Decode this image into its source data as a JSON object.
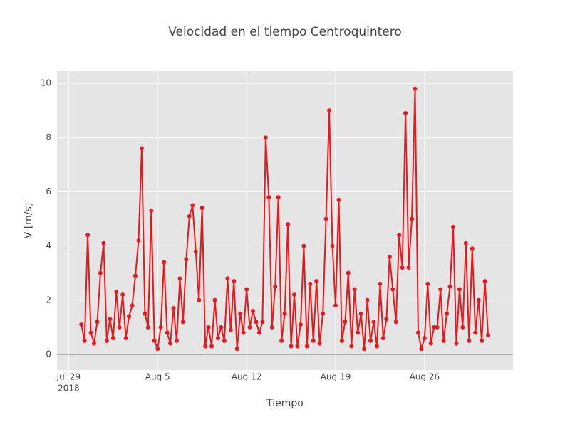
{
  "chart_data": {
    "type": "line",
    "title": "Velocidad en el tiempo Centroquintero",
    "x_label": "Tiempo",
    "y_label": "V [m/s]",
    "color": "#e41a1c",
    "grid": true,
    "xlim": [
      "2018-07-28 02:00",
      "2018-09-01 23:00"
    ],
    "xticks": [
      {
        "value": "2018-07-29",
        "label": "Jul 29"
      },
      {
        "value": "2018-08-05",
        "label": "Aug 5"
      },
      {
        "value": "2018-08-12",
        "label": "Aug 12"
      },
      {
        "value": "2018-08-19",
        "label": "Aug 19"
      },
      {
        "value": "2018-08-26",
        "label": "Aug 26"
      }
    ],
    "x_year": "2018",
    "ylim": [
      -0.58,
      10.45
    ],
    "yticks": [
      0,
      2,
      4,
      6,
      8,
      10
    ],
    "x": [
      "2018-07-30 00:00",
      "2018-07-30 06:00",
      "2018-07-30 12:00",
      "2018-07-30 18:00",
      "2018-07-31 00:00",
      "2018-07-31 06:00",
      "2018-07-31 12:00",
      "2018-07-31 18:00",
      "2018-08-01 00:00",
      "2018-08-01 06:00",
      "2018-08-01 12:00",
      "2018-08-01 18:00",
      "2018-08-02 00:00",
      "2018-08-02 06:00",
      "2018-08-02 12:00",
      "2018-08-02 18:00",
      "2018-08-03 00:00",
      "2018-08-03 06:00",
      "2018-08-03 12:00",
      "2018-08-03 18:00",
      "2018-08-04 00:00",
      "2018-08-04 06:00",
      "2018-08-04 12:00",
      "2018-08-04 18:00",
      "2018-08-05 00:00",
      "2018-08-05 06:00",
      "2018-08-05 12:00",
      "2018-08-05 18:00",
      "2018-08-06 00:00",
      "2018-08-06 06:00",
      "2018-08-06 12:00",
      "2018-08-06 18:00",
      "2018-08-07 00:00",
      "2018-08-07 06:00",
      "2018-08-07 12:00",
      "2018-08-07 18:00",
      "2018-08-08 00:00",
      "2018-08-08 06:00",
      "2018-08-08 12:00",
      "2018-08-08 18:00",
      "2018-08-09 00:00",
      "2018-08-09 06:00",
      "2018-08-09 12:00",
      "2018-08-09 18:00",
      "2018-08-10 00:00",
      "2018-08-10 06:00",
      "2018-08-10 12:00",
      "2018-08-10 18:00",
      "2018-08-11 00:00",
      "2018-08-11 06:00",
      "2018-08-11 12:00",
      "2018-08-11 18:00",
      "2018-08-12 00:00",
      "2018-08-12 06:00",
      "2018-08-12 12:00",
      "2018-08-12 18:00",
      "2018-08-13 00:00",
      "2018-08-13 06:00",
      "2018-08-13 12:00",
      "2018-08-13 18:00",
      "2018-08-14 00:00",
      "2018-08-14 06:00",
      "2018-08-14 12:00",
      "2018-08-14 18:00",
      "2018-08-15 00:00",
      "2018-08-15 06:00",
      "2018-08-15 12:00",
      "2018-08-15 18:00",
      "2018-08-16 00:00",
      "2018-08-16 06:00",
      "2018-08-16 12:00",
      "2018-08-16 18:00",
      "2018-08-17 00:00",
      "2018-08-17 06:00",
      "2018-08-17 12:00",
      "2018-08-17 18:00",
      "2018-08-18 00:00",
      "2018-08-18 06:00",
      "2018-08-18 12:00",
      "2018-08-18 18:00",
      "2018-08-19 00:00",
      "2018-08-19 06:00",
      "2018-08-19 12:00",
      "2018-08-19 18:00",
      "2018-08-20 00:00",
      "2018-08-20 06:00",
      "2018-08-20 12:00",
      "2018-08-20 18:00",
      "2018-08-21 00:00",
      "2018-08-21 06:00",
      "2018-08-21 12:00",
      "2018-08-21 18:00",
      "2018-08-22 00:00",
      "2018-08-22 06:00",
      "2018-08-22 12:00",
      "2018-08-22 18:00",
      "2018-08-23 00:00",
      "2018-08-23 06:00",
      "2018-08-23 12:00",
      "2018-08-23 18:00",
      "2018-08-24 00:00",
      "2018-08-24 06:00",
      "2018-08-24 12:00",
      "2018-08-24 18:00",
      "2018-08-25 00:00",
      "2018-08-25 06:00",
      "2018-08-25 12:00",
      "2018-08-25 18:00",
      "2018-08-26 00:00",
      "2018-08-26 06:00",
      "2018-08-26 12:00",
      "2018-08-26 18:00",
      "2018-08-27 00:00",
      "2018-08-27 06:00",
      "2018-08-27 12:00",
      "2018-08-27 18:00",
      "2018-08-28 00:00",
      "2018-08-28 06:00",
      "2018-08-28 12:00",
      "2018-08-28 18:00",
      "2018-08-29 00:00",
      "2018-08-29 06:00",
      "2018-08-29 12:00",
      "2018-08-29 18:00",
      "2018-08-30 00:00",
      "2018-08-30 06:00",
      "2018-08-30 12:00",
      "2018-08-30 18:00",
      "2018-08-31 00:00"
    ],
    "values": [
      1.1,
      0.5,
      4.4,
      0.8,
      0.4,
      1.2,
      3.0,
      4.1,
      0.5,
      1.3,
      0.6,
      2.3,
      1.0,
      2.2,
      0.6,
      1.4,
      1.8,
      2.9,
      4.2,
      7.6,
      1.5,
      1.0,
      5.3,
      0.5,
      0.2,
      1.0,
      3.4,
      0.8,
      0.4,
      1.7,
      0.5,
      2.8,
      1.2,
      3.5,
      5.1,
      5.5,
      3.8,
      2.0,
      5.4,
      0.3,
      1.0,
      0.3,
      2.0,
      0.6,
      1.0,
      0.5,
      2.8,
      0.9,
      2.7,
      0.2,
      1.5,
      0.8,
      2.4,
      1.0,
      1.6,
      1.2,
      0.8,
      1.2,
      8.0,
      5.8,
      1.0,
      2.5,
      5.8,
      0.5,
      1.5,
      4.8,
      0.3,
      2.2,
      0.3,
      1.1,
      4.0,
      0.3,
      2.6,
      0.5,
      2.7,
      0.4,
      1.5,
      5.0,
      9.0,
      4.0,
      1.8,
      5.7,
      0.5,
      1.2,
      3.0,
      0.3,
      2.4,
      0.8,
      1.5,
      0.2,
      2.0,
      0.5,
      1.2,
      0.3,
      2.6,
      0.6,
      1.3,
      3.6,
      2.4,
      1.2,
      4.4,
      3.2,
      8.9,
      3.2,
      5.0,
      9.8,
      0.8,
      0.2,
      0.6,
      2.6,
      0.4,
      1.0,
      1.0,
      2.4,
      0.5,
      1.5,
      2.5,
      4.7,
      0.4,
      2.4,
      1.0,
      4.1,
      0.5,
      3.9,
      0.8,
      2.0,
      0.5,
      2.7,
      0.7
    ]
  }
}
